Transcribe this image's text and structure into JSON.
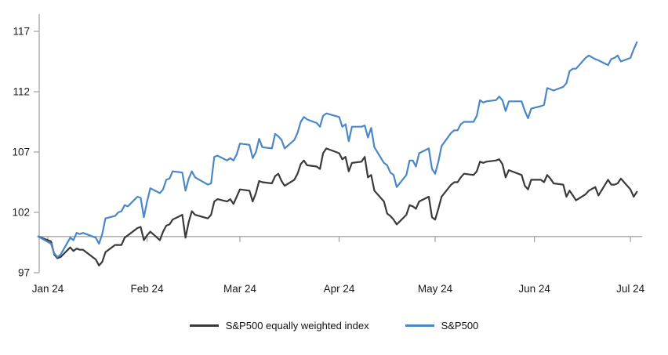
{
  "chart_data": {
    "type": "line",
    "title": "",
    "baseline": 100,
    "colors": {
      "axis": "#a6a6a6",
      "equal_weight_line": "#3a3a3a",
      "sp500_line": "#4a87c7",
      "text": "#1a1a1a"
    },
    "y_axis": {
      "ticks": [
        97,
        102,
        107,
        112,
        117
      ],
      "min": 97,
      "max": 118
    },
    "x_axis": {
      "labels": [
        "Jan 24",
        "Feb 24",
        "Mar 24",
        "Apr 24",
        "May 24",
        "Jun 24",
        "Jul 24"
      ],
      "tick_days": [
        0,
        31,
        60,
        91,
        121,
        152,
        182
      ]
    },
    "legend_position": "bottom",
    "dates": [
      "12-29",
      "1-2",
      "1-3",
      "1-4",
      "1-5",
      "1-8",
      "1-9",
      "1-10",
      "1-11",
      "1-12",
      "1-16",
      "1-17",
      "1-18",
      "1-19",
      "1-22",
      "1-23",
      "1-24",
      "1-25",
      "1-26",
      "1-29",
      "1-30",
      "1-31",
      "2-1",
      "2-2",
      "2-5",
      "2-6",
      "2-7",
      "2-8",
      "2-9",
      "2-12",
      "2-13",
      "2-14",
      "2-15",
      "2-16",
      "2-20",
      "2-21",
      "2-22",
      "2-23",
      "2-26",
      "2-27",
      "2-28",
      "2-29",
      "3-1",
      "3-4",
      "3-5",
      "3-6",
      "3-7",
      "3-8",
      "3-11",
      "3-12",
      "3-13",
      "3-14",
      "3-15",
      "3-18",
      "3-19",
      "3-20",
      "3-21",
      "3-22",
      "3-25",
      "3-26",
      "3-27",
      "3-28",
      "4-1",
      "4-2",
      "4-3",
      "4-4",
      "4-5",
      "4-8",
      "4-9",
      "4-10",
      "4-11",
      "4-12",
      "4-15",
      "4-16",
      "4-17",
      "4-18",
      "4-19",
      "4-22",
      "4-23",
      "4-24",
      "4-25",
      "4-26",
      "4-29",
      "4-30",
      "5-1",
      "5-2",
      "5-3",
      "5-6",
      "5-7",
      "5-8",
      "5-9",
      "5-10",
      "5-13",
      "5-14",
      "5-15",
      "5-16",
      "5-17",
      "5-20",
      "5-21",
      "5-22",
      "5-23",
      "5-24",
      "5-28",
      "5-29",
      "5-30",
      "5-31",
      "6-3",
      "6-4",
      "6-5",
      "6-6",
      "6-7",
      "6-10",
      "6-11",
      "6-12",
      "6-13",
      "6-14",
      "6-17",
      "6-18",
      "6-20",
      "6-21",
      "6-24",
      "6-25",
      "6-26",
      "6-27",
      "6-28",
      "7-1",
      "7-2",
      "7-3"
    ],
    "series": [
      {
        "name": "S&P500 equally weighted index",
        "color": "#3a3a3a",
        "values": [
          100.0,
          99.6,
          98.5,
          98.2,
          98.3,
          99.1,
          98.8,
          99.0,
          98.9,
          98.9,
          98.1,
          97.6,
          97.9,
          98.7,
          99.3,
          99.3,
          99.3,
          99.9,
          100.1,
          100.7,
          100.8,
          99.7,
          100.1,
          100.4,
          99.7,
          100.4,
          100.9,
          101.0,
          101.4,
          101.8,
          99.9,
          101.2,
          102.1,
          101.8,
          101.5,
          101.8,
          102.9,
          103.1,
          102.9,
          103.1,
          102.7,
          103.3,
          103.9,
          103.8,
          102.9,
          103.6,
          104.6,
          104.5,
          104.4,
          105.0,
          105.2,
          104.6,
          104.2,
          104.7,
          105.2,
          106.0,
          106.3,
          105.9,
          105.8,
          105.6,
          106.9,
          107.3,
          106.9,
          106.4,
          106.6,
          105.4,
          106.1,
          106.2,
          106.6,
          104.9,
          105.1,
          103.8,
          102.9,
          101.9,
          101.7,
          101.4,
          101.0,
          101.8,
          102.6,
          102.5,
          102.3,
          102.9,
          103.3,
          101.6,
          101.4,
          102.3,
          103.3,
          104.3,
          104.5,
          104.5,
          104.9,
          105.2,
          105.1,
          105.4,
          106.2,
          106.1,
          106.2,
          106.3,
          106.4,
          106.0,
          104.9,
          105.5,
          105.1,
          104.2,
          103.9,
          104.7,
          104.7,
          104.5,
          105.1,
          104.8,
          104.4,
          104.3,
          103.3,
          103.8,
          103.4,
          103.0,
          103.5,
          103.8,
          104.1,
          103.4,
          104.7,
          104.3,
          104.3,
          104.4,
          104.8,
          103.9,
          103.3,
          103.7
        ]
      },
      {
        "name": "S&P500",
        "color": "#4a87c7",
        "values": [
          100.0,
          99.4,
          98.6,
          98.3,
          98.5,
          99.9,
          99.7,
          100.3,
          100.2,
          100.3,
          99.9,
          99.4,
          100.2,
          101.5,
          101.7,
          102.0,
          102.1,
          102.6,
          102.5,
          103.3,
          103.2,
          101.6,
          102.9,
          104.0,
          103.6,
          103.9,
          104.7,
          104.8,
          105.4,
          105.3,
          103.8,
          104.8,
          105.4,
          104.9,
          104.3,
          104.4,
          106.6,
          106.7,
          106.3,
          106.5,
          106.3,
          106.8,
          107.7,
          107.6,
          106.5,
          107.0,
          108.1,
          107.4,
          107.3,
          108.5,
          108.3,
          108.0,
          107.3,
          108.0,
          108.6,
          109.5,
          109.9,
          109.7,
          109.4,
          109.1,
          110.0,
          110.2,
          109.9,
          109.1,
          109.3,
          107.9,
          109.1,
          109.1,
          109.2,
          108.2,
          109.0,
          107.4,
          106.1,
          105.9,
          105.3,
          105.1,
          104.1,
          105.1,
          106.3,
          106.3,
          105.8,
          106.9,
          107.3,
          105.6,
          105.2,
          106.2,
          107.5,
          108.6,
          108.8,
          108.8,
          109.3,
          109.5,
          109.5,
          110.0,
          111.3,
          111.1,
          111.2,
          111.3,
          111.6,
          111.3,
          110.4,
          111.2,
          111.2,
          110.4,
          109.8,
          110.6,
          110.8,
          110.9,
          112.3,
          112.2,
          112.1,
          112.4,
          112.7,
          113.7,
          113.9,
          113.9,
          114.8,
          115.0,
          114.7,
          114.6,
          114.2,
          114.7,
          114.8,
          115.0,
          114.5,
          114.8,
          115.5,
          116.1
        ]
      }
    ]
  }
}
